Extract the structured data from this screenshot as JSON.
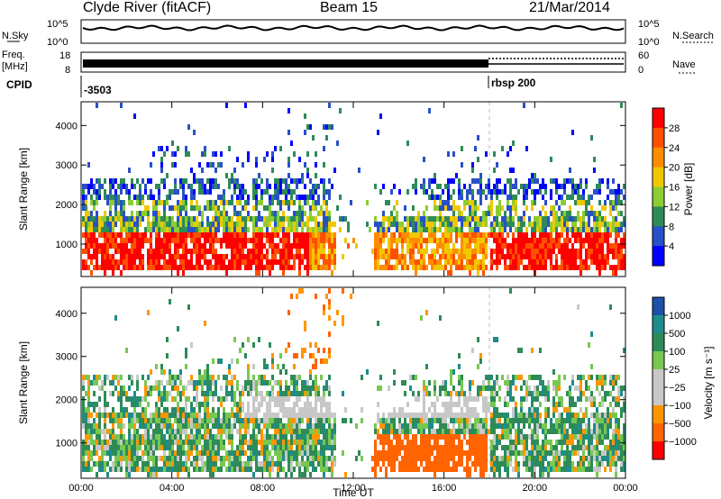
{
  "header": {
    "station": "Clyde River (fitACF)",
    "beam": "Beam 15",
    "date": "21/Mar/2014"
  },
  "top_panels": {
    "nsky_label": "N.Sky",
    "nsky_ticks": [
      "10^5",
      "10^0"
    ],
    "nsearch_label": "N.Search",
    "nsearch_ticks": [
      "10^5",
      "10^0"
    ],
    "freq_label": "Freq.",
    "freq_unit": "[MHz]",
    "freq_ticks": [
      "18",
      "8"
    ],
    "nave_label": "Nave",
    "nave_ticks": [
      "60",
      "0"
    ],
    "cpid_label": "CPID",
    "cpid_segments": [
      {
        "label": "-3503",
        "start_hour": 0
      },
      {
        "label": "rbsp 200",
        "start_hour": 18
      }
    ]
  },
  "chart_data": [
    {
      "type": "heatmap",
      "name": "Power",
      "ylabel": "Slant Range [km]",
      "yticks": [
        1000,
        2000,
        3000,
        4000
      ],
      "ylim": [
        180,
        4600
      ],
      "xlim_hours": [
        0,
        24
      ],
      "colorbar": {
        "label": "Power [dB]",
        "ticks": [
          "28",
          "24",
          "20",
          "16",
          "12",
          "8",
          "4"
        ],
        "colors": [
          "#ff0000",
          "#ff5000",
          "#ff8c00",
          "#f0c800",
          "#8ccd32",
          "#2e8b57",
          "#2850c8",
          "#0000ff"
        ]
      }
    },
    {
      "type": "heatmap",
      "name": "Velocity",
      "ylabel": "Slant Range [km]",
      "yticks": [
        1000,
        2000,
        3000,
        4000
      ],
      "ylim": [
        180,
        4600
      ],
      "xlim_hours": [
        0,
        24
      ],
      "xlabel": "Time UT",
      "xticks": [
        "00:00",
        "04:00",
        "08:00",
        "12:00",
        "16:00",
        "20:00",
        "00:00"
      ],
      "colorbar": {
        "label": "Velocity [m s⁻¹]",
        "ticks": [
          "1000",
          "500",
          "100",
          "25",
          "−25",
          "−100",
          "−500",
          "−1000"
        ],
        "colors": [
          "#1e50aa",
          "#1e8c8c",
          "#2e8b57",
          "#78c850",
          "#c8c8c8",
          "#c8c8c8",
          "#ff9600",
          "#ff6400",
          "#ff0000"
        ]
      }
    }
  ]
}
